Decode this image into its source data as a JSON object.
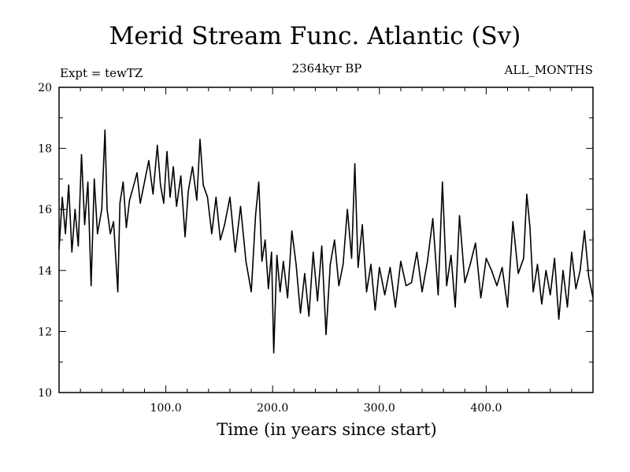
{
  "chart_data": {
    "type": "line",
    "title": "Merid Stream Func. Atlantic (Sv)",
    "subtitle_left": "Expt = tewTZ",
    "subtitle_center": "2364kyr BP",
    "subtitle_right": "ALL_MONTHS",
    "xlabel": "Time (in years since start)",
    "ylabel": "",
    "xlim": [
      0,
      500
    ],
    "ylim": [
      10,
      20
    ],
    "x_ticks": [
      100,
      200,
      300,
      400
    ],
    "x_tick_labels": [
      "100.0",
      "200.0",
      "300.0",
      "400.0"
    ],
    "y_ticks": [
      10,
      12,
      14,
      16,
      18,
      20
    ],
    "y_tick_labels": [
      "10",
      "12",
      "14",
      "16",
      "18",
      "20"
    ],
    "series": [
      {
        "name": "Merid Stream Func. Atlantic",
        "x": [
          0,
          3,
          6,
          9,
          12,
          15,
          18,
          21,
          24,
          27,
          30,
          33,
          36,
          40,
          43,
          45,
          48,
          51,
          55,
          57,
          60,
          63,
          66,
          70,
          73,
          76,
          80,
          84,
          88,
          92,
          95,
          98,
          101,
          104,
          107,
          110,
          114,
          118,
          121,
          125,
          129,
          132,
          135,
          139,
          143,
          147,
          151,
          155,
          160,
          165,
          170,
          175,
          180,
          184,
          187,
          190,
          193,
          196,
          199,
          201,
          204,
          207,
          210,
          214,
          218,
          222,
          226,
          230,
          234,
          238,
          242,
          246,
          250,
          254,
          258,
          262,
          266,
          270,
          274,
          277,
          280,
          284,
          288,
          292,
          296,
          300,
          305,
          310,
          315,
          320,
          325,
          330,
          335,
          340,
          345,
          350,
          355,
          359,
          363,
          367,
          371,
          375,
          380,
          385,
          390,
          395,
          400,
          405,
          410,
          415,
          420,
          425,
          430,
          435,
          438,
          441,
          444,
          448,
          452,
          456,
          460,
          464,
          468,
          472,
          476,
          480,
          484,
          488,
          492,
          496,
          500
        ],
        "values": [
          14.7,
          16.4,
          15.2,
          16.8,
          14.6,
          16.0,
          14.8,
          17.8,
          15.5,
          16.9,
          13.5,
          17.0,
          15.2,
          16.0,
          18.6,
          16.0,
          15.2,
          15.6,
          13.3,
          16.2,
          16.9,
          15.4,
          16.3,
          16.8,
          17.2,
          16.2,
          16.9,
          17.6,
          16.5,
          18.1,
          16.8,
          16.2,
          17.9,
          16.4,
          17.4,
          16.1,
          17.1,
          15.1,
          16.6,
          17.4,
          16.3,
          18.3,
          16.8,
          16.4,
          15.2,
          16.4,
          15.0,
          15.5,
          16.4,
          14.6,
          16.1,
          14.3,
          13.3,
          15.8,
          16.9,
          14.3,
          15.0,
          13.4,
          14.6,
          11.3,
          14.5,
          13.3,
          14.3,
          13.1,
          15.3,
          14.2,
          12.6,
          13.9,
          12.5,
          14.6,
          13.0,
          14.8,
          11.9,
          14.2,
          15.0,
          13.5,
          14.2,
          16.0,
          14.4,
          17.5,
          14.1,
          15.5,
          13.3,
          14.2,
          12.7,
          14.1,
          13.2,
          14.1,
          12.8,
          14.3,
          13.5,
          13.6,
          14.6,
          13.3,
          14.3,
          15.7,
          13.2,
          16.9,
          13.5,
          14.5,
          12.8,
          15.8,
          13.6,
          14.2,
          14.9,
          13.1,
          14.4,
          14.0,
          13.5,
          14.1,
          12.8,
          15.6,
          13.9,
          14.4,
          16.5,
          15.4,
          13.3,
          14.2,
          12.9,
          14.0,
          13.2,
          14.4,
          12.4,
          14.0,
          12.8,
          14.6,
          13.4,
          14.0,
          15.3,
          13.8,
          13.1
        ]
      }
    ]
  }
}
